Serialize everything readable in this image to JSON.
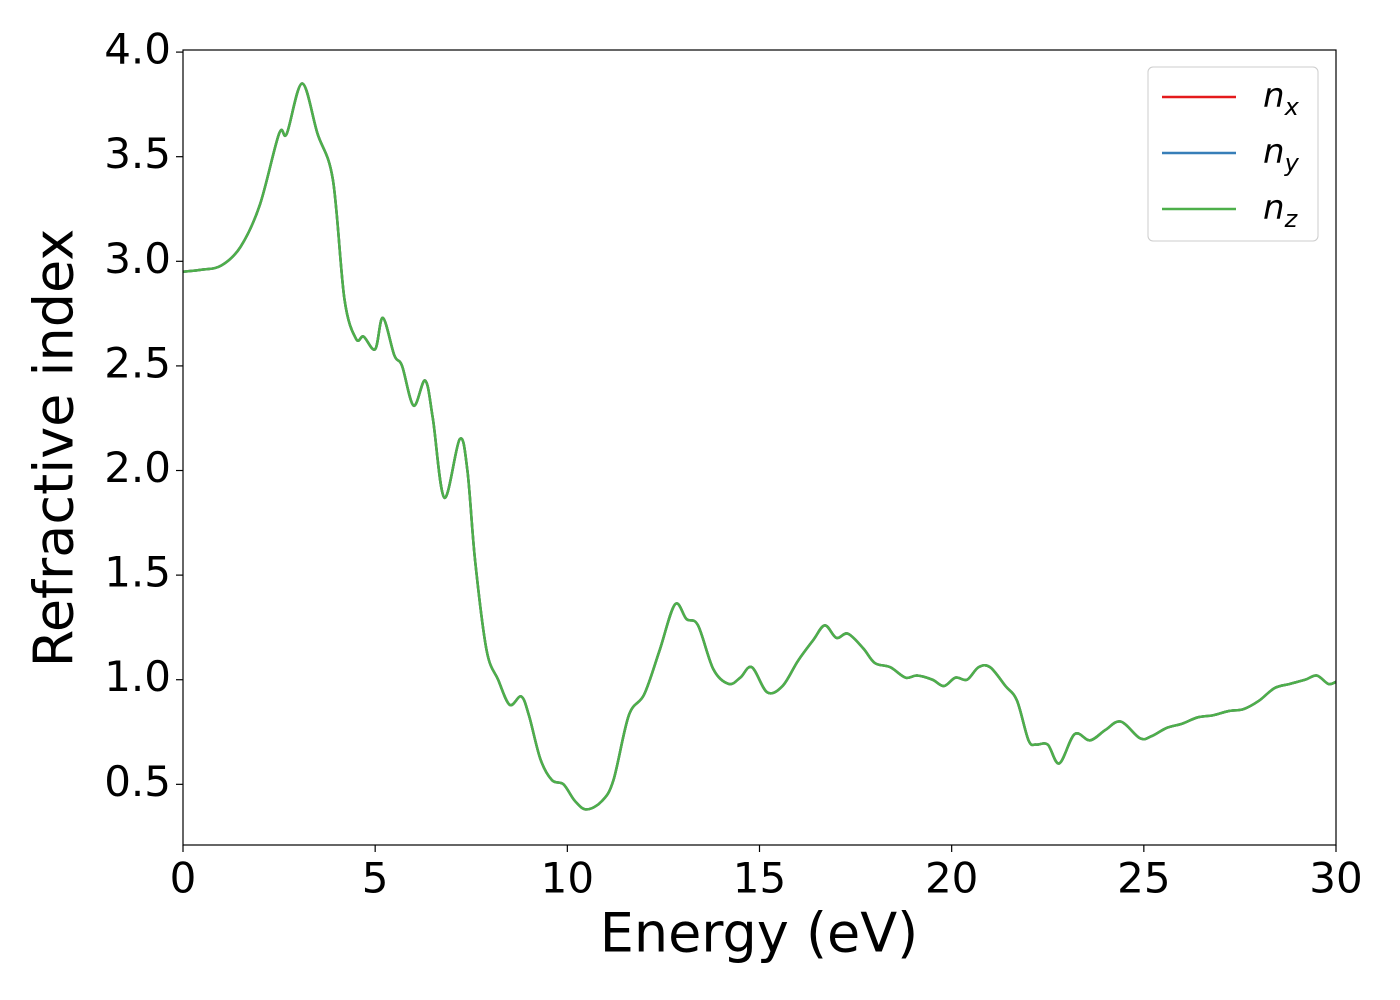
{
  "chart_data": {
    "type": "line",
    "xlabel": "Energy (eV)",
    "ylabel": "Refractive index",
    "x": [
      0,
      0.5,
      1,
      1.5,
      2,
      2.5,
      2.7,
      3.1,
      3.5,
      3.9,
      4.2,
      4.5,
      4.7,
      5.0,
      5.2,
      5.5,
      5.7,
      6.0,
      6.3,
      6.5,
      6.8,
      7.2,
      7.4,
      7.6,
      7.9,
      8.2,
      8.5,
      8.8,
      9.0,
      9.3,
      9.6,
      9.9,
      10.2,
      10.5,
      10.9,
      11.2,
      11.6,
      12.0,
      12.4,
      12.8,
      13.1,
      13.4,
      13.8,
      14.2,
      14.5,
      14.8,
      15.2,
      15.6,
      16.0,
      16.4,
      16.7,
      17.0,
      17.3,
      17.7,
      18.0,
      18.4,
      18.8,
      19.1,
      19.5,
      19.8,
      20.1,
      20.4,
      20.7,
      21.0,
      21.4,
      21.7,
      22.0,
      22.2,
      22.5,
      22.8,
      23.2,
      23.6,
      24.0,
      24.4,
      24.9,
      25.2,
      25.6,
      26.0,
      26.4,
      26.8,
      27.2,
      27.6,
      28.0,
      28.4,
      28.8,
      29.2,
      29.5,
      29.8,
      30.0
    ],
    "series": [
      {
        "name": "nx",
        "color": "#e41a1c",
        "values": [
          2.95,
          2.96,
          2.98,
          3.07,
          3.27,
          3.61,
          3.61,
          3.85,
          3.61,
          3.39,
          2.82,
          2.63,
          2.64,
          2.58,
          2.73,
          2.55,
          2.5,
          2.31,
          2.43,
          2.25,
          1.87,
          2.15,
          2.0,
          1.57,
          1.14,
          1.0,
          0.88,
          0.92,
          0.83,
          0.62,
          0.52,
          0.5,
          0.42,
          0.38,
          0.42,
          0.52,
          0.83,
          0.93,
          1.14,
          1.36,
          1.29,
          1.26,
          1.05,
          0.98,
          1.01,
          1.06,
          0.94,
          0.97,
          1.09,
          1.19,
          1.26,
          1.2,
          1.22,
          1.15,
          1.08,
          1.06,
          1.01,
          1.02,
          1.0,
          0.97,
          1.01,
          1.0,
          1.06,
          1.06,
          0.97,
          0.9,
          0.71,
          0.69,
          0.69,
          0.6,
          0.74,
          0.71,
          0.76,
          0.8,
          0.72,
          0.73,
          0.77,
          0.79,
          0.82,
          0.83,
          0.85,
          0.86,
          0.9,
          0.96,
          0.98,
          1.0,
          1.02,
          0.98,
          0.99
        ]
      },
      {
        "name": "ny",
        "color": "#377eb8",
        "values": [
          2.95,
          2.96,
          2.98,
          3.07,
          3.27,
          3.61,
          3.61,
          3.85,
          3.61,
          3.39,
          2.82,
          2.63,
          2.64,
          2.58,
          2.73,
          2.55,
          2.5,
          2.31,
          2.43,
          2.25,
          1.87,
          2.15,
          2.0,
          1.57,
          1.14,
          1.0,
          0.88,
          0.92,
          0.83,
          0.62,
          0.52,
          0.5,
          0.42,
          0.38,
          0.42,
          0.52,
          0.83,
          0.93,
          1.14,
          1.36,
          1.29,
          1.26,
          1.05,
          0.98,
          1.01,
          1.06,
          0.94,
          0.97,
          1.09,
          1.19,
          1.26,
          1.2,
          1.22,
          1.15,
          1.08,
          1.06,
          1.01,
          1.02,
          1.0,
          0.97,
          1.01,
          1.0,
          1.06,
          1.06,
          0.97,
          0.9,
          0.71,
          0.69,
          0.69,
          0.6,
          0.74,
          0.71,
          0.76,
          0.8,
          0.72,
          0.73,
          0.77,
          0.79,
          0.82,
          0.83,
          0.85,
          0.86,
          0.9,
          0.96,
          0.98,
          1.0,
          1.02,
          0.98,
          0.99
        ]
      },
      {
        "name": "nz",
        "color": "#4daf4a",
        "values": [
          2.95,
          2.96,
          2.98,
          3.07,
          3.27,
          3.61,
          3.61,
          3.85,
          3.61,
          3.39,
          2.82,
          2.63,
          2.64,
          2.58,
          2.73,
          2.55,
          2.5,
          2.31,
          2.43,
          2.25,
          1.87,
          2.15,
          2.0,
          1.57,
          1.14,
          1.0,
          0.88,
          0.92,
          0.83,
          0.62,
          0.52,
          0.5,
          0.42,
          0.38,
          0.42,
          0.52,
          0.83,
          0.93,
          1.14,
          1.36,
          1.29,
          1.26,
          1.05,
          0.98,
          1.01,
          1.06,
          0.94,
          0.97,
          1.09,
          1.19,
          1.26,
          1.2,
          1.22,
          1.15,
          1.08,
          1.06,
          1.01,
          1.02,
          1.0,
          0.97,
          1.01,
          1.0,
          1.06,
          1.06,
          0.97,
          0.9,
          0.71,
          0.69,
          0.69,
          0.6,
          0.74,
          0.71,
          0.76,
          0.8,
          0.72,
          0.73,
          0.77,
          0.79,
          0.82,
          0.83,
          0.85,
          0.86,
          0.9,
          0.96,
          0.98,
          1.0,
          1.02,
          0.98,
          0.99
        ]
      }
    ],
    "xlim": [
      0,
      30
    ],
    "xticks": [
      0,
      5,
      10,
      15,
      20,
      25,
      30
    ],
    "ylim": [
      0.21,
      4.01
    ],
    "yticks": [
      0.5,
      {
        "value": 1.0,
        "label": "1.0"
      },
      1.5,
      {
        "value": 2.0,
        "label": "2.0"
      },
      2.5,
      {
        "value": 3.0,
        "label": "3.0"
      },
      3.5,
      {
        "value": 4.0,
        "label": "4.0"
      }
    ],
    "grid": false,
    "legend": "upper right"
  }
}
